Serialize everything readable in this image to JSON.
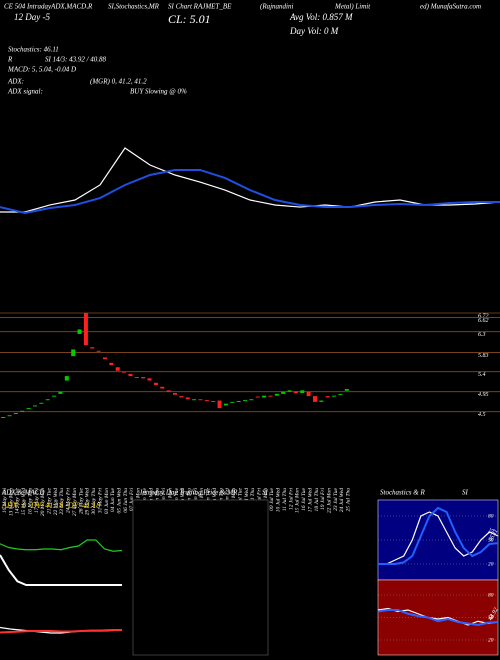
{
  "header": {
    "title_1": "CE 504 IntradayADX,MACD,R",
    "title_2": "SI,Stochastics,MR",
    "title_3": "SI Chart RAJMET_BE",
    "title_4": "(Rajnandini",
    "title_5": "Metal) Limit",
    "title_6": "ed) MunafaSutra.com",
    "period": "12 Day -5",
    "close": "CL: 5.01",
    "avg_vol": "Avg Vol: 0.857 M",
    "day_vol": "Day Vol: 0  M",
    "stochastics": "Stochastics: 46.11",
    "rsi_prefix": "R",
    "rsi": "SI 14/3: 43.92 / 40.88",
    "macd": "MACD: 5, 5.04, -0.04  D",
    "adx": "ADX:",
    "adx_values": "(MGR) 0, 41.2, 41.2",
    "adx_signal": "ADX  signal:",
    "signal": "BUY Slowing @ 0%"
  },
  "chart_data": [
    {
      "type": "candlestick",
      "categories": [
        "10 May Fri",
        "13 May Mon",
        "14 May Tue",
        "15 May Wed",
        "16 May Thu",
        "17 May Fri",
        "20 May Mon",
        "21 May Tue",
        "22 May Wed",
        "23 May Thu",
        "24 May Fri",
        "27 May Mon",
        "28 May Tue",
        "29 May Wed",
        "30 May Thu",
        "31 May Fri",
        "03 Jun Mon",
        "04 Jun Tue",
        "05 Jun Wed",
        "06 Jun Thu",
        "07 Jun Fri",
        "10 Jun Mon",
        "11 Jun Tue",
        "12 Jun Wed",
        "13 Jun Thu",
        "14 Jun Fri",
        "17 Jun Mon",
        "18 Jun Tue",
        "19 Jun Wed",
        "20 Jun Thu",
        "21 Jun Fri",
        "24 Jun Mon",
        "25 Jun Tue",
        "26 Jun Wed",
        "27 Jun Thu",
        "28 Jun Fri",
        "01 Jul Mon",
        "02 Jul Tue",
        "03 Jul Wed",
        "04 Jul Thu",
        "05 Jul Fri",
        "08 Jul Mon",
        "09 Jul Tue",
        "10 Jul Wed",
        "11 Jul Thu",
        "12 Jul Fri",
        "15 Jul Mon",
        "16 Jul Tue",
        "17 Jul Wed",
        "18 Jul Thu",
        "19 Jul Fri",
        "22 Jul Mon",
        "23 Jul Tue",
        "24 Jul Wed",
        "25 Jul Thu"
      ],
      "open": [
        4.36,
        4.4,
        4.45,
        4.5,
        4.56,
        4.62,
        4.68,
        4.76,
        4.84,
        4.9,
        5.2,
        5.75,
        6.25,
        6.72,
        5.95,
        5.87,
        5.72,
        5.6,
        5.5,
        5.4,
        5.35,
        5.28,
        5.28,
        5.25,
        5.15,
        5.06,
        4.98,
        4.92,
        4.85,
        4.82,
        4.76,
        4.78,
        4.76,
        4.74,
        4.75,
        4.64,
        4.7,
        4.72,
        4.74,
        4.76,
        4.84,
        4.82,
        4.86,
        4.86,
        4.9,
        4.95,
        4.96,
        4.92,
        4.95,
        4.85,
        4.72,
        4.85,
        4.84,
        4.88,
        4.97
      ],
      "close": [
        4.38,
        4.42,
        4.47,
        4.52,
        4.58,
        4.64,
        4.7,
        4.78,
        4.86,
        4.95,
        5.3,
        5.9,
        6.35,
        6.0,
        5.92,
        5.85,
        5.68,
        5.55,
        5.42,
        5.38,
        5.3,
        5.26,
        5.25,
        5.2,
        5.1,
        5.02,
        4.95,
        4.88,
        4.82,
        4.78,
        4.78,
        4.76,
        4.74,
        4.72,
        4.58,
        4.68,
        4.72,
        4.74,
        4.76,
        4.78,
        4.82,
        4.86,
        4.84,
        4.9,
        4.95,
        4.98,
        4.92,
        4.98,
        4.85,
        4.72,
        4.75,
        4.82,
        4.86,
        4.9,
        5.01
      ],
      "up_color": "#00cc00",
      "down_color": "#ff2020",
      "grid_color": "#8b4a1a",
      "ylim": [
        4.2,
        6.9
      ],
      "yticks": [
        6.72,
        6.62,
        6.3,
        5.83,
        5.4,
        4.95,
        4.5
      ]
    },
    {
      "type": "line",
      "ylim": [
        0,
        100
      ],
      "series": [
        {
          "color": "#ffffff",
          "values": [
            8.9,
            8.9,
            16.7,
            22.2,
            38.9,
            80,
            61.1,
            50,
            42.2,
            33.3,
            22.2,
            16.7,
            14.4,
            16.7,
            14.4,
            20,
            22.2,
            16.7,
            16.7,
            17.8,
            20
          ]
        },
        {
          "color": "#1f4fe0",
          "values": [
            14.4,
            7.8,
            13.3,
            16.7,
            24.4,
            38.9,
            50,
            55.6,
            55.6,
            46.7,
            33.3,
            22.2,
            16.7,
            14.4,
            14.4,
            16.7,
            17.8,
            16.7,
            18.9,
            20,
            20
          ]
        }
      ]
    },
    {
      "type": "line",
      "title": "ADX  & MACD",
      "annotation": "ADX: 0  -DY: 41.18  -DY: 41.18",
      "ylim": [
        0,
        100
      ],
      "series": [
        {
          "color": "#22cc22",
          "values": [
            55,
            50,
            48,
            47,
            47,
            48,
            48,
            47,
            50,
            52,
            60,
            60,
            48,
            45,
            46
          ]
        },
        {
          "color": "#ffffff",
          "values": [
            40,
            20,
            5,
            0,
            0,
            0,
            0,
            0,
            0,
            0,
            0,
            0,
            0,
            0,
            0
          ]
        }
      ]
    },
    {
      "type": "line",
      "ylim": [
        0,
        100
      ],
      "series": [
        {
          "color": "#ffffff",
          "values": [
            55,
            52,
            50,
            48,
            46,
            44,
            44,
            46,
            48,
            48,
            48,
            49,
            50
          ]
        },
        {
          "color": "#ff3030",
          "values": [
            45,
            46,
            47,
            48,
            48,
            48,
            47,
            47,
            48,
            49,
            49,
            50,
            50
          ]
        }
      ]
    },
    {
      "type": "panel",
      "title": "Intraday Day Trading Price & MR",
      "title_2": "SI"
    },
    {
      "type": "line",
      "title": "Stochastics & R",
      "title_2": "SI",
      "background": "#000080",
      "ylim": [
        0,
        100
      ],
      "yticks": [
        80,
        50,
        20
      ],
      "series": [
        {
          "color": "#ffffff",
          "values": [
            20,
            20,
            25,
            30,
            50,
            80,
            85,
            80,
            60,
            40,
            30,
            35,
            50,
            60,
            55
          ]
        },
        {
          "color": "#2060ff",
          "values": [
            20,
            20,
            20,
            22,
            30,
            55,
            80,
            90,
            85,
            60,
            40,
            30,
            35,
            45,
            46.11
          ]
        }
      ]
    },
    {
      "type": "line",
      "background": "#8b0000",
      "ylim": [
        0,
        100
      ],
      "yticks": [
        80,
        50,
        20
      ],
      "series": [
        {
          "color": "#ffffff",
          "values": [
            60,
            62,
            58,
            60,
            55,
            50,
            48,
            50,
            45,
            40,
            45,
            42,
            44
          ]
        },
        {
          "color": "#3060ff",
          "values": [
            58,
            60,
            60,
            55,
            52,
            50,
            45,
            48,
            44,
            42,
            40,
            43,
            43.92
          ]
        }
      ]
    }
  ]
}
